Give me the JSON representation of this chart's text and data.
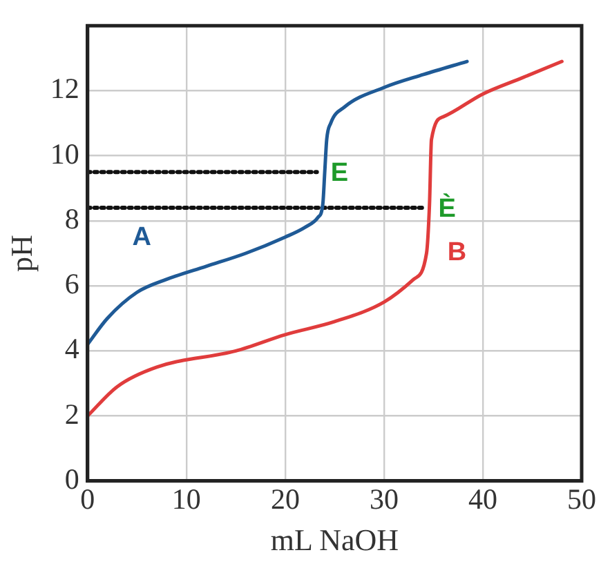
{
  "chart_data": {
    "type": "line",
    "xlabel": "mL NaOH",
    "ylabel": "pH",
    "xlim": [
      0,
      50
    ],
    "xticks": [
      0,
      10,
      20,
      30,
      40,
      50
    ],
    "ylim": [
      0,
      14
    ],
    "yticks": [
      0,
      2,
      4,
      6,
      8,
      10,
      12
    ],
    "grid": true,
    "legend": false,
    "marker": "none",
    "series": [
      {
        "name": "A",
        "color": "#1f5a96",
        "x": [
          0,
          2,
          5,
          8,
          12,
          16,
          20,
          22,
          23.3,
          23.8,
          24,
          24.2,
          24.6,
          26,
          30,
          34,
          38.4
        ],
        "values": [
          4.2,
          5.0,
          5.8,
          6.2,
          6.6,
          7.0,
          7.5,
          7.8,
          8.1,
          8.5,
          9.5,
          10.5,
          11.0,
          11.5,
          12.1,
          12.5,
          12.9
        ]
      },
      {
        "name": "B",
        "color": "#e03c3c",
        "x": [
          0,
          3,
          7,
          15,
          20,
          25,
          30,
          33,
          34.3,
          34.6,
          34.8,
          36,
          40,
          44,
          48
        ],
        "values": [
          2.0,
          2.9,
          3.5,
          4.0,
          4.5,
          4.9,
          5.5,
          6.2,
          7.0,
          8.5,
          10.5,
          11.2,
          11.9,
          12.4,
          12.9
        ]
      },
      {
        "type": "line",
        "line_style": "dotted",
        "color": "#111111",
        "x": [
          0,
          23.2
        ],
        "values": [
          9.5,
          9.5
        ]
      },
      {
        "type": "line",
        "line_style": "dotted",
        "color": "#111111",
        "x": [
          0,
          34.1
        ],
        "values": [
          8.4,
          8.4
        ]
      }
    ],
    "annotations": [
      {
        "text": "E",
        "x": 23.2,
        "y": 9.5
      },
      {
        "text": "È",
        "x": 34.1,
        "y": 8.4
      }
    ]
  }
}
